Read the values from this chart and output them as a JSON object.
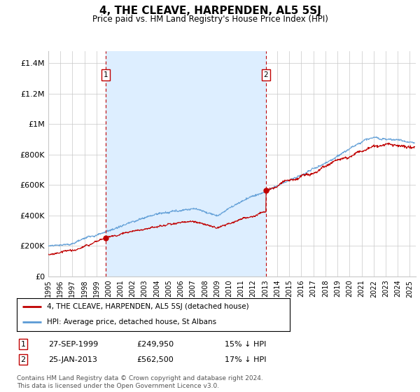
{
  "title": "4, THE CLEAVE, HARPENDEN, AL5 5SJ",
  "subtitle": "Price paid vs. HM Land Registry's House Price Index (HPI)",
  "ylabel_ticks": [
    "£0",
    "£200K",
    "£400K",
    "£600K",
    "£800K",
    "£1M",
    "£1.2M",
    "£1.4M"
  ],
  "ytick_values": [
    0,
    200000,
    400000,
    600000,
    800000,
    1000000,
    1200000,
    1400000
  ],
  "ylim": [
    0,
    1480000
  ],
  "xlim_start": 1995.0,
  "xlim_end": 2025.5,
  "sale1": {
    "date": 1999.75,
    "price": 249950,
    "label": "1",
    "text": "27-SEP-1999",
    "amount": "£249,950",
    "pct": "15% ↓ HPI"
  },
  "sale2": {
    "date": 2013.07,
    "price": 562500,
    "label": "2",
    "text": "25-JAN-2013",
    "amount": "£562,500",
    "pct": "17% ↓ HPI"
  },
  "legend_line1": "4, THE CLEAVE, HARPENDEN, AL5 5SJ (detached house)",
  "legend_line2": "HPI: Average price, detached house, St Albans",
  "footnote": "Contains HM Land Registry data © Crown copyright and database right 2024.\nThis data is licensed under the Open Government Licence v3.0.",
  "hpi_color": "#5b9bd5",
  "price_color": "#c00000",
  "vline_color": "#c00000",
  "grid_color": "#c8c8c8",
  "shade_color": "#ddeeff",
  "background_color": "#ffffff"
}
